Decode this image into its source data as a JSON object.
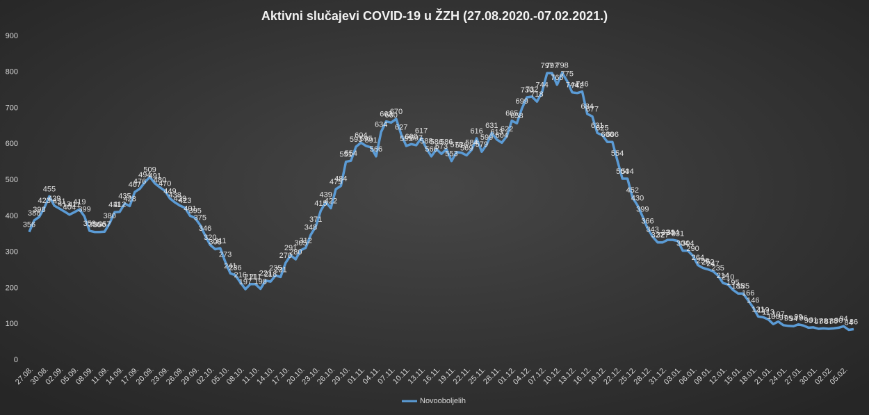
{
  "chart_data": {
    "type": "line",
    "title": "Aktivni  slučajevi  COVID-19  u  ŽZH  (27.08.2020.-07.02.2021.)",
    "categories": [
      "27.08.",
      null,
      null,
      "30.08.",
      null,
      null,
      "02.09.",
      null,
      null,
      "05.09.",
      null,
      null,
      "08.09.",
      null,
      null,
      "11.09.",
      null,
      null,
      "14.09.",
      null,
      null,
      "17.09.",
      null,
      null,
      "20.09.",
      null,
      null,
      "23.09.",
      null,
      null,
      "26.09.",
      null,
      null,
      "29.09.",
      null,
      null,
      "02.10.",
      null,
      null,
      "05.10.",
      null,
      null,
      "08.10.",
      null,
      null,
      "11.10.",
      null,
      null,
      "14.10.",
      null,
      null,
      "17.10.",
      null,
      null,
      "20.10.",
      null,
      null,
      "23.10.",
      null,
      null,
      "26.10.",
      null,
      null,
      "29.10.",
      null,
      null,
      "01.11.",
      null,
      null,
      "04.11.",
      null,
      null,
      "07.11.",
      null,
      null,
      "10.11.",
      null,
      null,
      "13.11.",
      null,
      null,
      "16.11.",
      null,
      null,
      "19.11.",
      null,
      null,
      "22.11.",
      null,
      null,
      "25.11.",
      null,
      null,
      "28.11.",
      null,
      null,
      "01.12.",
      null,
      null,
      "04.12.",
      null,
      null,
      "07.12.",
      null,
      null,
      "10.12.",
      null,
      null,
      "13.12.",
      null,
      null,
      "16.12.",
      null,
      null,
      "19.12.",
      null,
      null,
      "22.12.",
      null,
      null,
      "25.12.",
      null,
      null,
      "28.12.",
      null,
      null,
      "31.12.",
      null,
      null,
      "03.01.",
      null,
      null,
      "06.01.",
      null,
      null,
      "09.01.",
      null,
      null,
      "12.01.",
      null,
      null,
      "15.01.",
      null,
      null,
      "18.01.",
      null,
      null,
      "21.01.",
      null,
      null,
      "24.01.",
      null,
      null,
      "27.01.",
      null,
      null,
      "30.01.",
      null,
      null,
      "02.02.",
      null,
      null,
      "05.02.",
      null,
      null
    ],
    "series": [
      {
        "name": "Novooboljelih",
        "color": "#5b9bd5",
        "values": [
          356,
          388,
          398,
          423,
          455,
          429,
          421,
          413,
          404,
          411,
          419,
          399,
          359,
          356,
          356,
          357,
          380,
          411,
          412,
          435,
          428,
          467,
          476,
          494,
          509,
          491,
          480,
          470,
          449,
          438,
          429,
          423,
          401,
          395,
          375,
          346,
          320,
          308,
          311,
          273,
          241,
          236,
          216,
          197,
          211,
          211,
          198,
          221,
          218,
          235,
          231,
          270,
          291,
          280,
          305,
          312,
          348,
          371,
          415,
          439,
          422,
          475,
          484,
          551,
          554,
          593,
          604,
          595,
          591,
          566,
          634,
          663,
          660,
          670,
          627,
          595,
          600,
          597,
          617,
          588,
          566,
          586,
          573,
          586,
          553,
          578,
          576,
          569,
          584,
          616,
          579,
          599,
          631,
          613,
          604,
          622,
          665,
          658,
          699,
          730,
          732,
          718,
          744,
          797,
          797,
          765,
          798,
          775,
          744,
          742,
          746,
          684,
          677,
          631,
          625,
          606,
          606,
          554,
          504,
          504,
          452,
          430,
          399,
          366,
          343,
          327,
          327,
          334,
          334,
          331,
          304,
          304,
          290,
          264,
          256,
          252,
          247,
          235,
          214,
          210,
          195,
          185,
          185,
          166,
          146,
          121,
          119,
          113,
          100,
          107,
          97,
          95,
          94,
          99,
          96,
          90,
          91,
          87,
          88,
          87,
          88,
          90,
          94,
          84,
          86
        ]
      }
    ],
    "ylim": [
      0,
      900
    ],
    "yticks": [
      0,
      100,
      200,
      300,
      400,
      500,
      600,
      700,
      800,
      900
    ],
    "grid": false,
    "legend": "bottom"
  }
}
